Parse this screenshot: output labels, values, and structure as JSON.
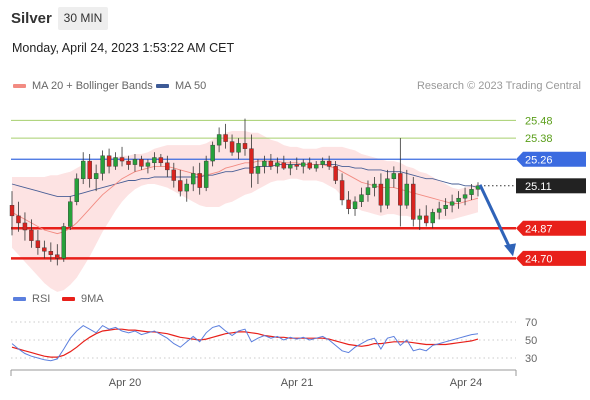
{
  "header": {
    "instrument": "Silver",
    "timeframe": "30 MIN",
    "datetime": "Monday, April 24, 2023 1:53:22 AM CET"
  },
  "legend": {
    "ma20_bb": {
      "label": "MA 20 + Bollinger Bands",
      "color": "#f28b82"
    },
    "ma50": {
      "label": "MA 50",
      "color": "#3d5a96"
    },
    "rsi": {
      "label": "RSI",
      "color": "#5b7fde"
    },
    "ma9": {
      "label": "9MA",
      "color": "#e8201a"
    }
  },
  "attribution": "Research © 2023 Trading Central",
  "chart_data": {
    "type": "candlestick",
    "y_range": [
      24.6,
      25.55
    ],
    "x_ticks": [
      "Apr 20",
      "Apr 21",
      "Apr 24"
    ],
    "levels": [
      {
        "label": "25.48",
        "value": 25.48,
        "style": "resistance-light",
        "color": "#a6cf6e",
        "text_color": "#5a9e1a"
      },
      {
        "label": "25.38",
        "value": 25.38,
        "style": "resistance-light",
        "color": "#a6cf6e",
        "text_color": "#5a9e1a"
      },
      {
        "label": "25.26",
        "value": 25.26,
        "style": "pivot",
        "color": "#3b6be0",
        "text_color": "#ffffff"
      },
      {
        "label": "25.11",
        "value": 25.11,
        "style": "last",
        "color": "#222222",
        "text_color": "#ffffff"
      },
      {
        "label": "24.87",
        "value": 24.87,
        "style": "support",
        "color": "#e8201a",
        "text_color": "#ffffff"
      },
      {
        "label": "24.70",
        "value": 24.7,
        "style": "support",
        "color": "#e8201a",
        "text_color": "#ffffff"
      }
    ],
    "candles": [
      [
        25.0,
        25.08,
        24.83,
        24.94
      ],
      [
        24.94,
        25.02,
        24.85,
        24.9
      ],
      [
        24.9,
        24.96,
        24.8,
        24.86
      ],
      [
        24.86,
        24.92,
        24.76,
        24.8
      ],
      [
        24.8,
        24.86,
        24.72,
        24.76
      ],
      [
        24.76,
        24.8,
        24.7,
        24.74
      ],
      [
        24.74,
        24.79,
        24.68,
        24.72
      ],
      [
        24.72,
        24.78,
        24.66,
        24.7
      ],
      [
        24.7,
        24.9,
        24.68,
        24.88
      ],
      [
        24.88,
        25.05,
        24.86,
        25.02
      ],
      [
        25.02,
        25.18,
        25.0,
        25.15
      ],
      [
        25.15,
        25.3,
        25.12,
        25.25
      ],
      [
        25.25,
        25.29,
        25.1,
        25.15
      ],
      [
        25.15,
        25.23,
        25.08,
        25.18
      ],
      [
        25.18,
        25.31,
        25.14,
        25.28
      ],
      [
        25.28,
        25.32,
        25.18,
        25.22
      ],
      [
        25.22,
        25.3,
        25.2,
        25.27
      ],
      [
        25.27,
        25.33,
        25.22,
        25.25
      ],
      [
        25.25,
        25.28,
        25.2,
        25.23
      ],
      [
        25.23,
        25.29,
        25.19,
        25.26
      ],
      [
        25.26,
        25.28,
        25.2,
        25.22
      ],
      [
        25.22,
        25.26,
        25.18,
        25.24
      ],
      [
        25.24,
        25.3,
        25.2,
        25.27
      ],
      [
        25.27,
        25.29,
        25.22,
        25.24
      ],
      [
        25.24,
        25.28,
        25.16,
        25.2
      ],
      [
        25.2,
        25.24,
        25.1,
        25.14
      ],
      [
        25.14,
        25.2,
        25.05,
        25.08
      ],
      [
        25.08,
        25.15,
        25.02,
        25.12
      ],
      [
        25.12,
        25.22,
        25.08,
        25.18
      ],
      [
        25.18,
        25.24,
        25.06,
        25.1
      ],
      [
        25.1,
        25.28,
        25.08,
        25.25
      ],
      [
        25.25,
        25.36,
        25.22,
        25.34
      ],
      [
        25.34,
        25.44,
        25.3,
        25.4
      ],
      [
        25.4,
        25.46,
        25.32,
        25.36
      ],
      [
        25.36,
        25.4,
        25.28,
        25.3
      ],
      [
        25.3,
        25.38,
        25.26,
        25.35
      ],
      [
        25.35,
        25.49,
        25.28,
        25.32
      ],
      [
        25.32,
        25.4,
        25.1,
        25.18
      ],
      [
        25.18,
        25.26,
        25.12,
        25.22
      ],
      [
        25.22,
        25.28,
        25.18,
        25.25
      ],
      [
        25.25,
        25.29,
        25.2,
        25.22
      ],
      [
        25.22,
        25.27,
        25.18,
        25.24
      ],
      [
        25.24,
        25.28,
        25.2,
        25.21
      ],
      [
        25.21,
        25.25,
        25.17,
        25.23
      ],
      [
        25.23,
        25.27,
        25.2,
        25.22
      ],
      [
        25.22,
        25.26,
        25.18,
        25.24
      ],
      [
        25.24,
        25.27,
        25.2,
        25.21
      ],
      [
        25.21,
        25.25,
        25.19,
        25.23
      ],
      [
        25.23,
        25.27,
        25.21,
        25.25
      ],
      [
        25.25,
        25.28,
        25.2,
        25.22
      ],
      [
        25.22,
        25.25,
        25.12,
        25.14
      ],
      [
        25.14,
        25.18,
        25.0,
        25.03
      ],
      [
        25.03,
        25.08,
        24.95,
        24.98
      ],
      [
        24.98,
        25.05,
        24.94,
        25.02
      ],
      [
        25.02,
        25.1,
        24.99,
        25.06
      ],
      [
        25.06,
        25.14,
        25.02,
        25.1
      ],
      [
        25.1,
        25.16,
        25.05,
        25.12
      ],
      [
        25.12,
        25.18,
        24.96,
        25.0
      ],
      [
        25.0,
        25.2,
        24.98,
        25.15
      ],
      [
        25.15,
        25.22,
        25.1,
        25.18
      ],
      [
        25.18,
        25.38,
        24.88,
        25.0
      ],
      [
        25.0,
        25.2,
        24.98,
        25.12
      ],
      [
        25.12,
        25.16,
        24.88,
        24.92
      ],
      [
        24.92,
        24.98,
        24.86,
        24.94
      ],
      [
        24.94,
        25.0,
        24.88,
        24.9
      ],
      [
        24.9,
        24.98,
        24.87,
        24.96
      ],
      [
        24.96,
        25.02,
        24.92,
        24.98
      ],
      [
        24.98,
        25.04,
        24.94,
        25.0
      ],
      [
        25.0,
        25.06,
        24.96,
        25.02
      ],
      [
        25.02,
        25.08,
        24.98,
        25.04
      ],
      [
        25.04,
        25.1,
        25.0,
        25.06
      ],
      [
        25.06,
        25.12,
        25.03,
        25.09
      ],
      [
        25.09,
        25.13,
        25.05,
        25.11
      ]
    ],
    "ma20": [
      24.96,
      24.94,
      24.92,
      24.9,
      24.88,
      24.86,
      24.85,
      24.84,
      24.85,
      24.87,
      24.9,
      24.94,
      24.98,
      25.02,
      25.06,
      25.09,
      25.12,
      25.15,
      25.17,
      25.19,
      25.2,
      25.21,
      25.22,
      25.22,
      25.22,
      25.21,
      25.2,
      25.19,
      25.18,
      25.17,
      25.17,
      25.18,
      25.19,
      25.21,
      25.22,
      25.23,
      25.24,
      25.24,
      25.25,
      25.25,
      25.25,
      25.25,
      25.24,
      25.24,
      25.24,
      25.23,
      25.23,
      25.23,
      25.23,
      25.22,
      25.21,
      25.19,
      25.17,
      25.15,
      25.13,
      25.12,
      25.11,
      25.1,
      25.1,
      25.1,
      25.09,
      25.08,
      25.07,
      25.06,
      25.05,
      25.04,
      25.03,
      25.02,
      25.01,
      25.01,
      25.02,
      25.03,
      25.04
    ],
    "ma50": [
      25.12,
      25.11,
      25.1,
      25.09,
      25.08,
      25.07,
      25.06,
      25.05,
      25.05,
      25.05,
      25.06,
      25.07,
      25.08,
      25.09,
      25.1,
      25.11,
      25.12,
      25.13,
      25.14,
      25.14,
      25.15,
      25.15,
      25.16,
      25.16,
      25.16,
      25.16,
      25.16,
      25.16,
      25.16,
      25.16,
      25.17,
      25.17,
      25.18,
      25.19,
      25.19,
      25.2,
      25.21,
      25.21,
      25.22,
      25.22,
      25.22,
      25.23,
      25.23,
      25.23,
      25.23,
      25.23,
      25.23,
      25.23,
      25.23,
      25.23,
      25.23,
      25.22,
      25.22,
      25.21,
      25.21,
      25.2,
      25.2,
      25.2,
      25.19,
      25.19,
      25.19,
      25.18,
      25.17,
      25.16,
      25.15,
      25.15,
      25.14,
      25.13,
      25.12,
      25.12,
      25.11,
      25.11,
      25.1
    ],
    "bb_width": [
      0.2,
      0.22,
      0.24,
      0.26,
      0.28,
      0.3,
      0.32,
      0.33,
      0.33,
      0.32,
      0.31,
      0.29,
      0.27,
      0.24,
      0.21,
      0.18,
      0.15,
      0.13,
      0.11,
      0.1,
      0.09,
      0.09,
      0.1,
      0.11,
      0.12,
      0.13,
      0.14,
      0.15,
      0.16,
      0.17,
      0.18,
      0.19,
      0.2,
      0.2,
      0.2,
      0.19,
      0.18,
      0.17,
      0.16,
      0.14,
      0.12,
      0.11,
      0.1,
      0.09,
      0.09,
      0.09,
      0.09,
      0.09,
      0.1,
      0.11,
      0.12,
      0.14,
      0.15,
      0.16,
      0.16,
      0.16,
      0.16,
      0.16,
      0.15,
      0.15,
      0.15,
      0.14,
      0.14,
      0.13,
      0.13,
      0.12,
      0.11,
      0.1,
      0.09,
      0.08,
      0.08,
      0.08,
      0.08
    ],
    "forecast": {
      "from": 25.11,
      "to": 24.7
    },
    "rsi": {
      "y_ticks": [
        70,
        50,
        30
      ],
      "rsi": [
        46,
        40,
        35,
        32,
        30,
        28,
        27,
        29,
        40,
        52,
        60,
        66,
        62,
        58,
        66,
        62,
        64,
        60,
        58,
        60,
        56,
        58,
        60,
        56,
        52,
        46,
        42,
        48,
        54,
        48,
        58,
        64,
        66,
        60,
        55,
        60,
        62,
        48,
        52,
        55,
        52,
        54,
        50,
        53,
        51,
        53,
        50,
        52,
        54,
        50,
        44,
        38,
        36,
        42,
        46,
        50,
        52,
        40,
        52,
        54,
        44,
        50,
        38,
        40,
        38,
        44,
        46,
        48,
        50,
        52,
        54,
        56,
        57
      ],
      "ma9": [
        42,
        40,
        38,
        36,
        34,
        32,
        31,
        31,
        33,
        37,
        42,
        48,
        53,
        57,
        60,
        61,
        62,
        62,
        61,
        61,
        60,
        59,
        59,
        58,
        57,
        55,
        53,
        52,
        51,
        50,
        51,
        53,
        55,
        57,
        58,
        59,
        59,
        58,
        57,
        55,
        54,
        53,
        53,
        52,
        52,
        52,
        52,
        52,
        52,
        51,
        49,
        47,
        45,
        44,
        43,
        44,
        46,
        46,
        47,
        48,
        48,
        48,
        47,
        46,
        45,
        45,
        45,
        45,
        46,
        47,
        48,
        49,
        51
      ]
    }
  }
}
